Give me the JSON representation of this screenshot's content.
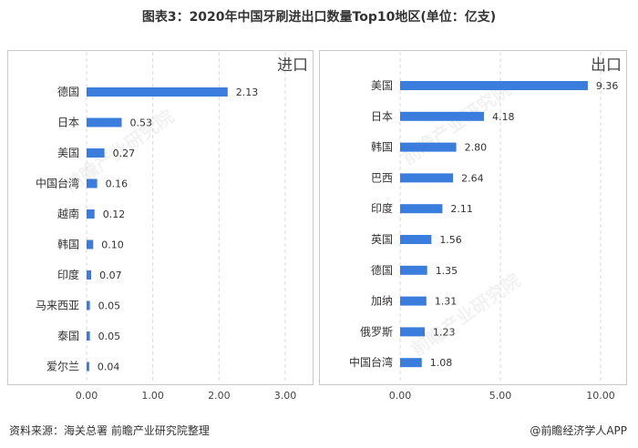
{
  "title": "图表3：2020年中国牙刷进出口数量Top10地区(单位：亿支)",
  "footer": {
    "source": "资料来源：海关总署 前瞻产业研究院整理",
    "app": "@前瞻经济学人APP"
  },
  "watermark": "前瞻产业研究院",
  "colors": {
    "bar": "#3b7ddd",
    "grid": "#d9d9d9",
    "border": "#c8c8c8"
  },
  "chart_data": [
    {
      "type": "bar",
      "orientation": "horizontal",
      "title": "进口",
      "categories": [
        "德国",
        "日本",
        "美国",
        "中国台湾",
        "越南",
        "韩国",
        "印度",
        "马来西亚",
        "泰国",
        "爱尔兰"
      ],
      "values": [
        2.13,
        0.53,
        0.27,
        0.16,
        0.12,
        0.1,
        0.07,
        0.05,
        0.05,
        0.04
      ],
      "value_labels": [
        "2.13",
        "0.53",
        "0.27",
        "0.16",
        "0.12",
        "0.10",
        "0.07",
        "0.05",
        "0.05",
        "0.04"
      ],
      "xlim": [
        0,
        3
      ],
      "xticks": [
        "0.00",
        "1.00",
        "2.00",
        "3.00"
      ],
      "grid": true
    },
    {
      "type": "bar",
      "orientation": "horizontal",
      "title": "出口",
      "categories": [
        "美国",
        "日本",
        "韩国",
        "巴西",
        "印度",
        "英国",
        "德国",
        "加纳",
        "俄罗斯",
        "中国台湾"
      ],
      "values": [
        9.36,
        4.18,
        2.8,
        2.64,
        2.11,
        1.56,
        1.35,
        1.31,
        1.23,
        1.08
      ],
      "value_labels": [
        "9.36",
        "4.18",
        "2.80",
        "2.64",
        "2.11",
        "1.56",
        "1.35",
        "1.31",
        "1.23",
        "1.08"
      ],
      "xlim": [
        0,
        10
      ],
      "xticks": [
        "0.00",
        "5.00",
        "10.00"
      ],
      "grid": true
    }
  ]
}
